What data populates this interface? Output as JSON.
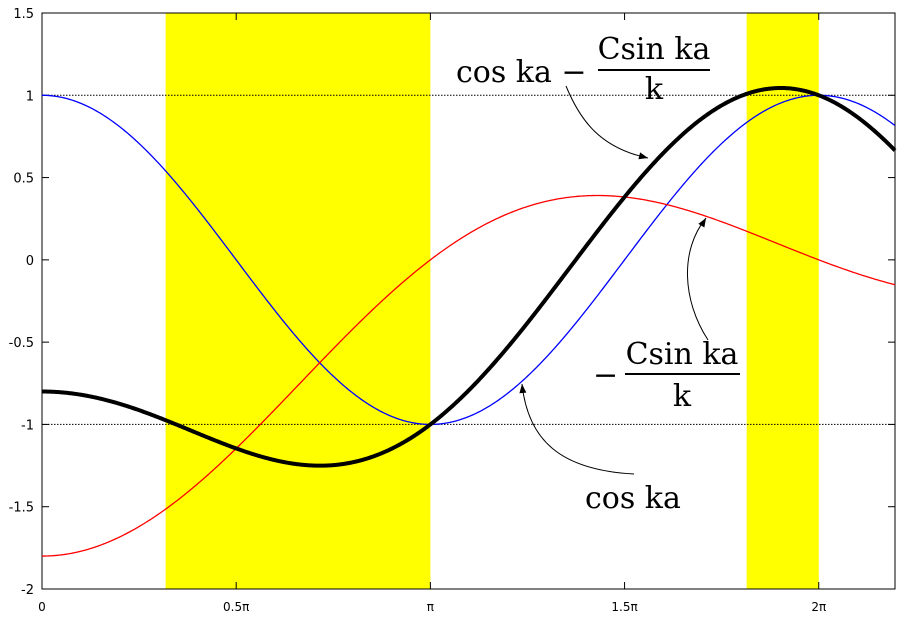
{
  "chart_data": {
    "type": "line",
    "title": "",
    "xlabel": "",
    "ylabel": "",
    "xlim": [
      0,
      6.9
    ],
    "ylim": [
      -2,
      1.5
    ],
    "C": 1.8,
    "grid": false,
    "x_ticks": [
      {
        "value": 0,
        "label": "0"
      },
      {
        "value": 1.5708,
        "label": "0.5π"
      },
      {
        "value": 3.1416,
        "label": "π"
      },
      {
        "value": 4.7124,
        "label": "1.5π"
      },
      {
        "value": 6.2832,
        "label": "2π"
      }
    ],
    "y_ticks": [
      {
        "value": 1.5,
        "label": "1.5"
      },
      {
        "value": 1,
        "label": "1"
      },
      {
        "value": 0.5,
        "label": "0.5"
      },
      {
        "value": 0,
        "label": "0"
      },
      {
        "value": -0.5,
        "label": "-0.5"
      },
      {
        "value": -1,
        "label": "-1"
      },
      {
        "value": -1.5,
        "label": "-1.5"
      },
      {
        "value": -2,
        "label": "-2"
      }
    ],
    "reference_lines": [
      1,
      -1
    ],
    "bands": [
      [
        1.0,
        3.1416
      ],
      [
        5.7,
        6.2832
      ]
    ],
    "series": [
      {
        "key": "cos",
        "color": "#0000ff",
        "width": 1.3
      },
      {
        "key": "csin",
        "color": "#ff0000",
        "width": 1.3
      },
      {
        "key": "sum",
        "color": "#000000",
        "width": 4
      }
    ],
    "annotations": [
      {
        "label": "sum-label",
        "text_main": "cos ka −",
        "numerator": "Csin ka",
        "denominator": "k"
      },
      {
        "label": "csin-label",
        "text_main": "−",
        "numerator": "Csin ka",
        "denominator": "k"
      },
      {
        "label": "cos-label",
        "text_main": "cos ka"
      }
    ],
    "colors": {
      "band": "#ffff00",
      "background": "#ffffff",
      "axis": "#000000"
    }
  }
}
